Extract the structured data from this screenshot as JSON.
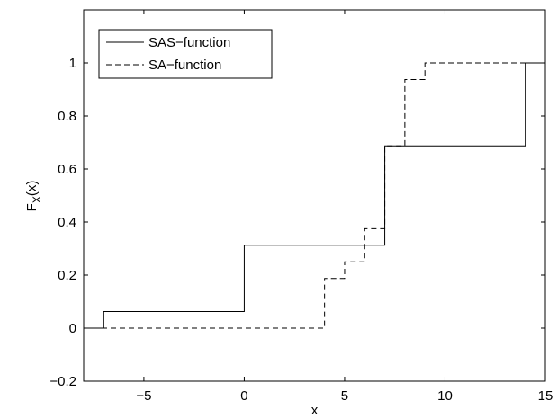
{
  "chart_data": {
    "type": "line",
    "title": "",
    "xlabel": "x",
    "ylabel": {
      "main": "F",
      "sub": "X",
      "suffix": "(x)"
    },
    "xlim": [
      -8,
      15
    ],
    "ylim": [
      -0.2,
      1.2
    ],
    "xticks": [
      -5,
      0,
      5,
      10,
      15
    ],
    "yticks": [
      -0.2,
      0,
      0.2,
      0.4,
      0.6,
      0.8,
      1
    ],
    "grid": false,
    "legend_position": "top-left",
    "series": [
      {
        "name": "SAS−function",
        "style": "solid",
        "color": "#000000",
        "x": [
          -8,
          -7,
          -7,
          0,
          0,
          7,
          7,
          14,
          14,
          15
        ],
        "y": [
          0,
          0,
          0.0625,
          0.0625,
          0.3125,
          0.3125,
          0.6875,
          0.6875,
          1,
          1
        ]
      },
      {
        "name": "SA−function",
        "style": "dashed",
        "color": "#000000",
        "x": [
          -8,
          4,
          4,
          5,
          5,
          6,
          6,
          7,
          7,
          8,
          8,
          9,
          9,
          15
        ],
        "y": [
          0,
          0,
          0.1875,
          0.1875,
          0.25,
          0.25,
          0.375,
          0.375,
          0.6875,
          0.6875,
          0.9375,
          0.9375,
          1,
          1
        ]
      }
    ]
  }
}
